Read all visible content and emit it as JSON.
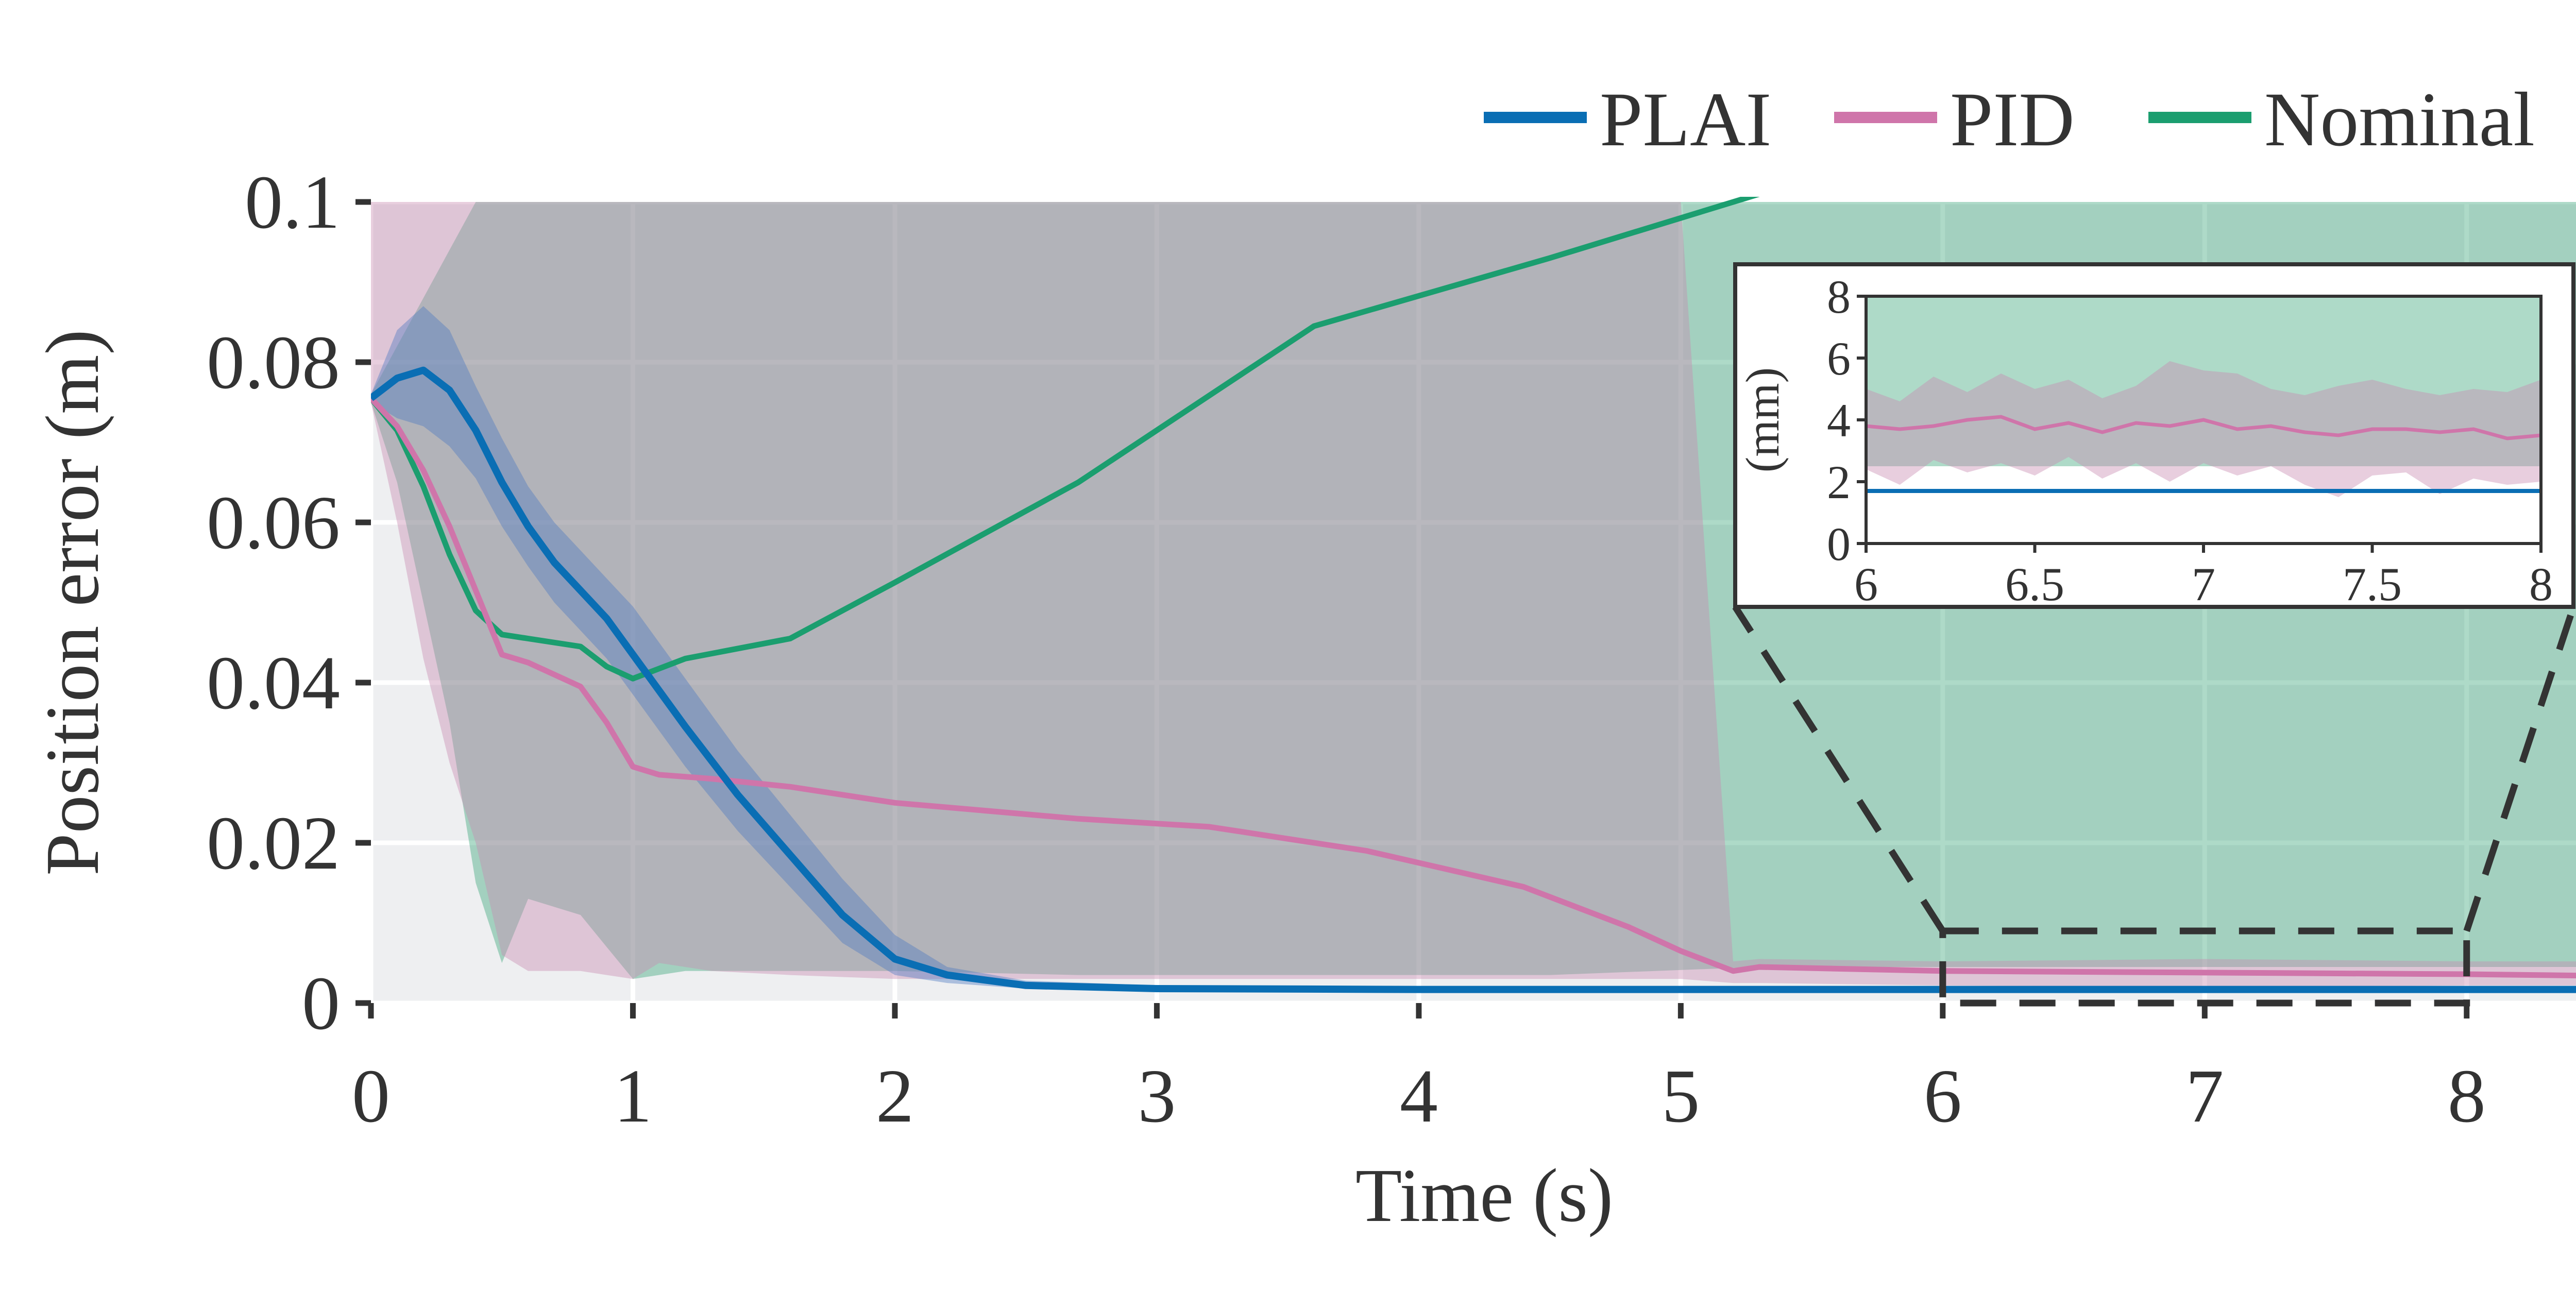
{
  "chart_data": {
    "type": "line",
    "xlabel": "Time (s)",
    "ylabel": "Position error (m)",
    "xlim": [
      0,
      8.5
    ],
    "ylim": [
      0,
      0.1
    ],
    "xticks": [
      "0",
      "1",
      "2",
      "3",
      "4",
      "5",
      "6",
      "7",
      "8"
    ],
    "yticks": [
      "0",
      "0.02",
      "0.04",
      "0.06",
      "0.08",
      "0.1"
    ],
    "grid": true,
    "legend_position": "top-right",
    "series": [
      {
        "name": "PLAI",
        "color": "#0a6eb4",
        "x": [
          0,
          0.1,
          0.2,
          0.3,
          0.4,
          0.5,
          0.6,
          0.7,
          0.8,
          0.9,
          1.0,
          1.2,
          1.4,
          1.6,
          1.8,
          2.0,
          2.2,
          2.5,
          3.0,
          4.0,
          5.0,
          6.0,
          7.0,
          8.0,
          8.5
        ],
        "y": [
          0.0755,
          0.078,
          0.079,
          0.0765,
          0.0715,
          0.065,
          0.0595,
          0.055,
          0.0515,
          0.048,
          0.0435,
          0.0345,
          0.026,
          0.0185,
          0.011,
          0.0055,
          0.0035,
          0.0022,
          0.0018,
          0.0017,
          0.0017,
          0.0017,
          0.0017,
          0.0017,
          0.0017
        ],
        "band_upper": [
          0.076,
          0.084,
          0.087,
          0.084,
          0.077,
          0.0705,
          0.0645,
          0.06,
          0.0565,
          0.053,
          0.0495,
          0.0405,
          0.0315,
          0.0235,
          0.0155,
          0.0085,
          0.0045,
          0.0028,
          0.0022,
          0.0019,
          0.0019,
          0.0019,
          0.0019,
          0.0019,
          0.0019
        ],
        "band_lower": [
          0.075,
          0.073,
          0.072,
          0.0695,
          0.0655,
          0.0595,
          0.0545,
          0.05,
          0.0465,
          0.043,
          0.0385,
          0.0295,
          0.0215,
          0.0145,
          0.0075,
          0.0035,
          0.0025,
          0.0018,
          0.0016,
          0.0015,
          0.0015,
          0.0015,
          0.0015,
          0.0015,
          0.0015
        ]
      },
      {
        "name": "PID",
        "color": "#cf75aa",
        "x": [
          0,
          0.1,
          0.2,
          0.3,
          0.4,
          0.5,
          0.6,
          0.8,
          0.9,
          1.0,
          1.1,
          1.3,
          1.6,
          2.0,
          2.7,
          3.2,
          3.8,
          4.4,
          4.8,
          5.0,
          5.2,
          5.3,
          6.0,
          7.0,
          8.0,
          8.5
        ],
        "y": [
          0.0755,
          0.072,
          0.0665,
          0.0595,
          0.0515,
          0.0435,
          0.0425,
          0.0395,
          0.035,
          0.0295,
          0.0285,
          0.028,
          0.027,
          0.025,
          0.023,
          0.022,
          0.019,
          0.0145,
          0.0095,
          0.0065,
          0.004,
          0.0045,
          0.004,
          0.0038,
          0.0036,
          0.0034
        ],
        "band_upper": [
          0.1,
          0.1,
          0.1,
          0.1,
          0.1,
          0.1,
          0.1,
          0.1,
          0.1,
          0.1,
          0.1,
          0.1,
          0.1,
          0.1,
          0.1,
          0.1,
          0.1,
          0.1,
          0.1,
          0.1,
          0.0052,
          0.0055,
          0.0052,
          0.0055,
          0.0052,
          0.0052
        ],
        "band_lower": [
          0.075,
          0.06,
          0.043,
          0.03,
          0.02,
          0.006,
          0.004,
          0.004,
          0.0035,
          0.003,
          0.005,
          0.004,
          0.0035,
          0.003,
          0.003,
          0.003,
          0.003,
          0.003,
          0.003,
          0.003,
          0.0025,
          0.0025,
          0.0022,
          0.002,
          0.0022,
          0.0022
        ]
      },
      {
        "name": "Nominal",
        "color": "#1b9e6f",
        "x": [
          0,
          0.1,
          0.2,
          0.3,
          0.4,
          0.5,
          0.6,
          0.8,
          0.9,
          1.0,
          1.2,
          1.6,
          2.0,
          2.7,
          3.6,
          4.5,
          5.3,
          8.5
        ],
        "y": [
          0.0755,
          0.0715,
          0.0645,
          0.056,
          0.049,
          0.046,
          0.0455,
          0.0445,
          0.042,
          0.0405,
          0.043,
          0.0455,
          0.0525,
          0.065,
          0.0845,
          0.093,
          0.101,
          0.101
        ],
        "band_upper": [
          0.076,
          0.082,
          0.088,
          0.094,
          0.1,
          0.1,
          0.1,
          0.1,
          0.1,
          0.1,
          0.1,
          0.1,
          0.1,
          0.1,
          0.1,
          0.1,
          0.1,
          0.1
        ],
        "band_lower": [
          0.075,
          0.065,
          0.05,
          0.035,
          0.015,
          0.005,
          0.013,
          0.011,
          0.007,
          0.003,
          0.004,
          0.004,
          0.004,
          0.0035,
          0.0035,
          0.0035,
          0.0045,
          0.0045
        ]
      }
    ],
    "inset": {
      "ylabel": "(mm)",
      "xlim": [
        6,
        8
      ],
      "ylim": [
        0,
        8
      ],
      "xticks": [
        "6",
        "6.5",
        "7",
        "7.5",
        "8"
      ],
      "yticks": [
        "0",
        "2",
        "4",
        "6",
        "8"
      ],
      "nominal_band": {
        "lower_mm": 2.5,
        "upper_mm": 8
      },
      "series": [
        {
          "name": "PID",
          "x": [
            6.0,
            6.1,
            6.2,
            6.3,
            6.4,
            6.5,
            6.6,
            6.7,
            6.8,
            6.9,
            7.0,
            7.1,
            7.2,
            7.3,
            7.4,
            7.5,
            7.6,
            7.7,
            7.8,
            7.9,
            8.0
          ],
          "y": [
            3.8,
            3.7,
            3.8,
            4.0,
            4.1,
            3.7,
            3.9,
            3.6,
            3.9,
            3.8,
            4.0,
            3.7,
            3.8,
            3.6,
            3.5,
            3.7,
            3.7,
            3.6,
            3.7,
            3.4,
            3.5
          ],
          "band_upper": [
            5.0,
            4.6,
            5.4,
            4.9,
            5.5,
            5.0,
            5.3,
            4.7,
            5.1,
            5.9,
            5.6,
            5.5,
            5.0,
            4.8,
            5.1,
            5.3,
            5.0,
            4.8,
            5.0,
            4.9,
            5.3
          ],
          "band_lower": [
            2.4,
            1.9,
            2.7,
            2.3,
            2.6,
            2.2,
            2.8,
            2.1,
            2.6,
            2.0,
            2.6,
            2.2,
            2.5,
            1.9,
            1.5,
            2.2,
            2.3,
            1.6,
            2.1,
            1.9,
            2.0
          ]
        },
        {
          "name": "PLAI",
          "x": [
            6.0,
            8.0
          ],
          "y": [
            1.7,
            1.7
          ]
        }
      ]
    }
  }
}
